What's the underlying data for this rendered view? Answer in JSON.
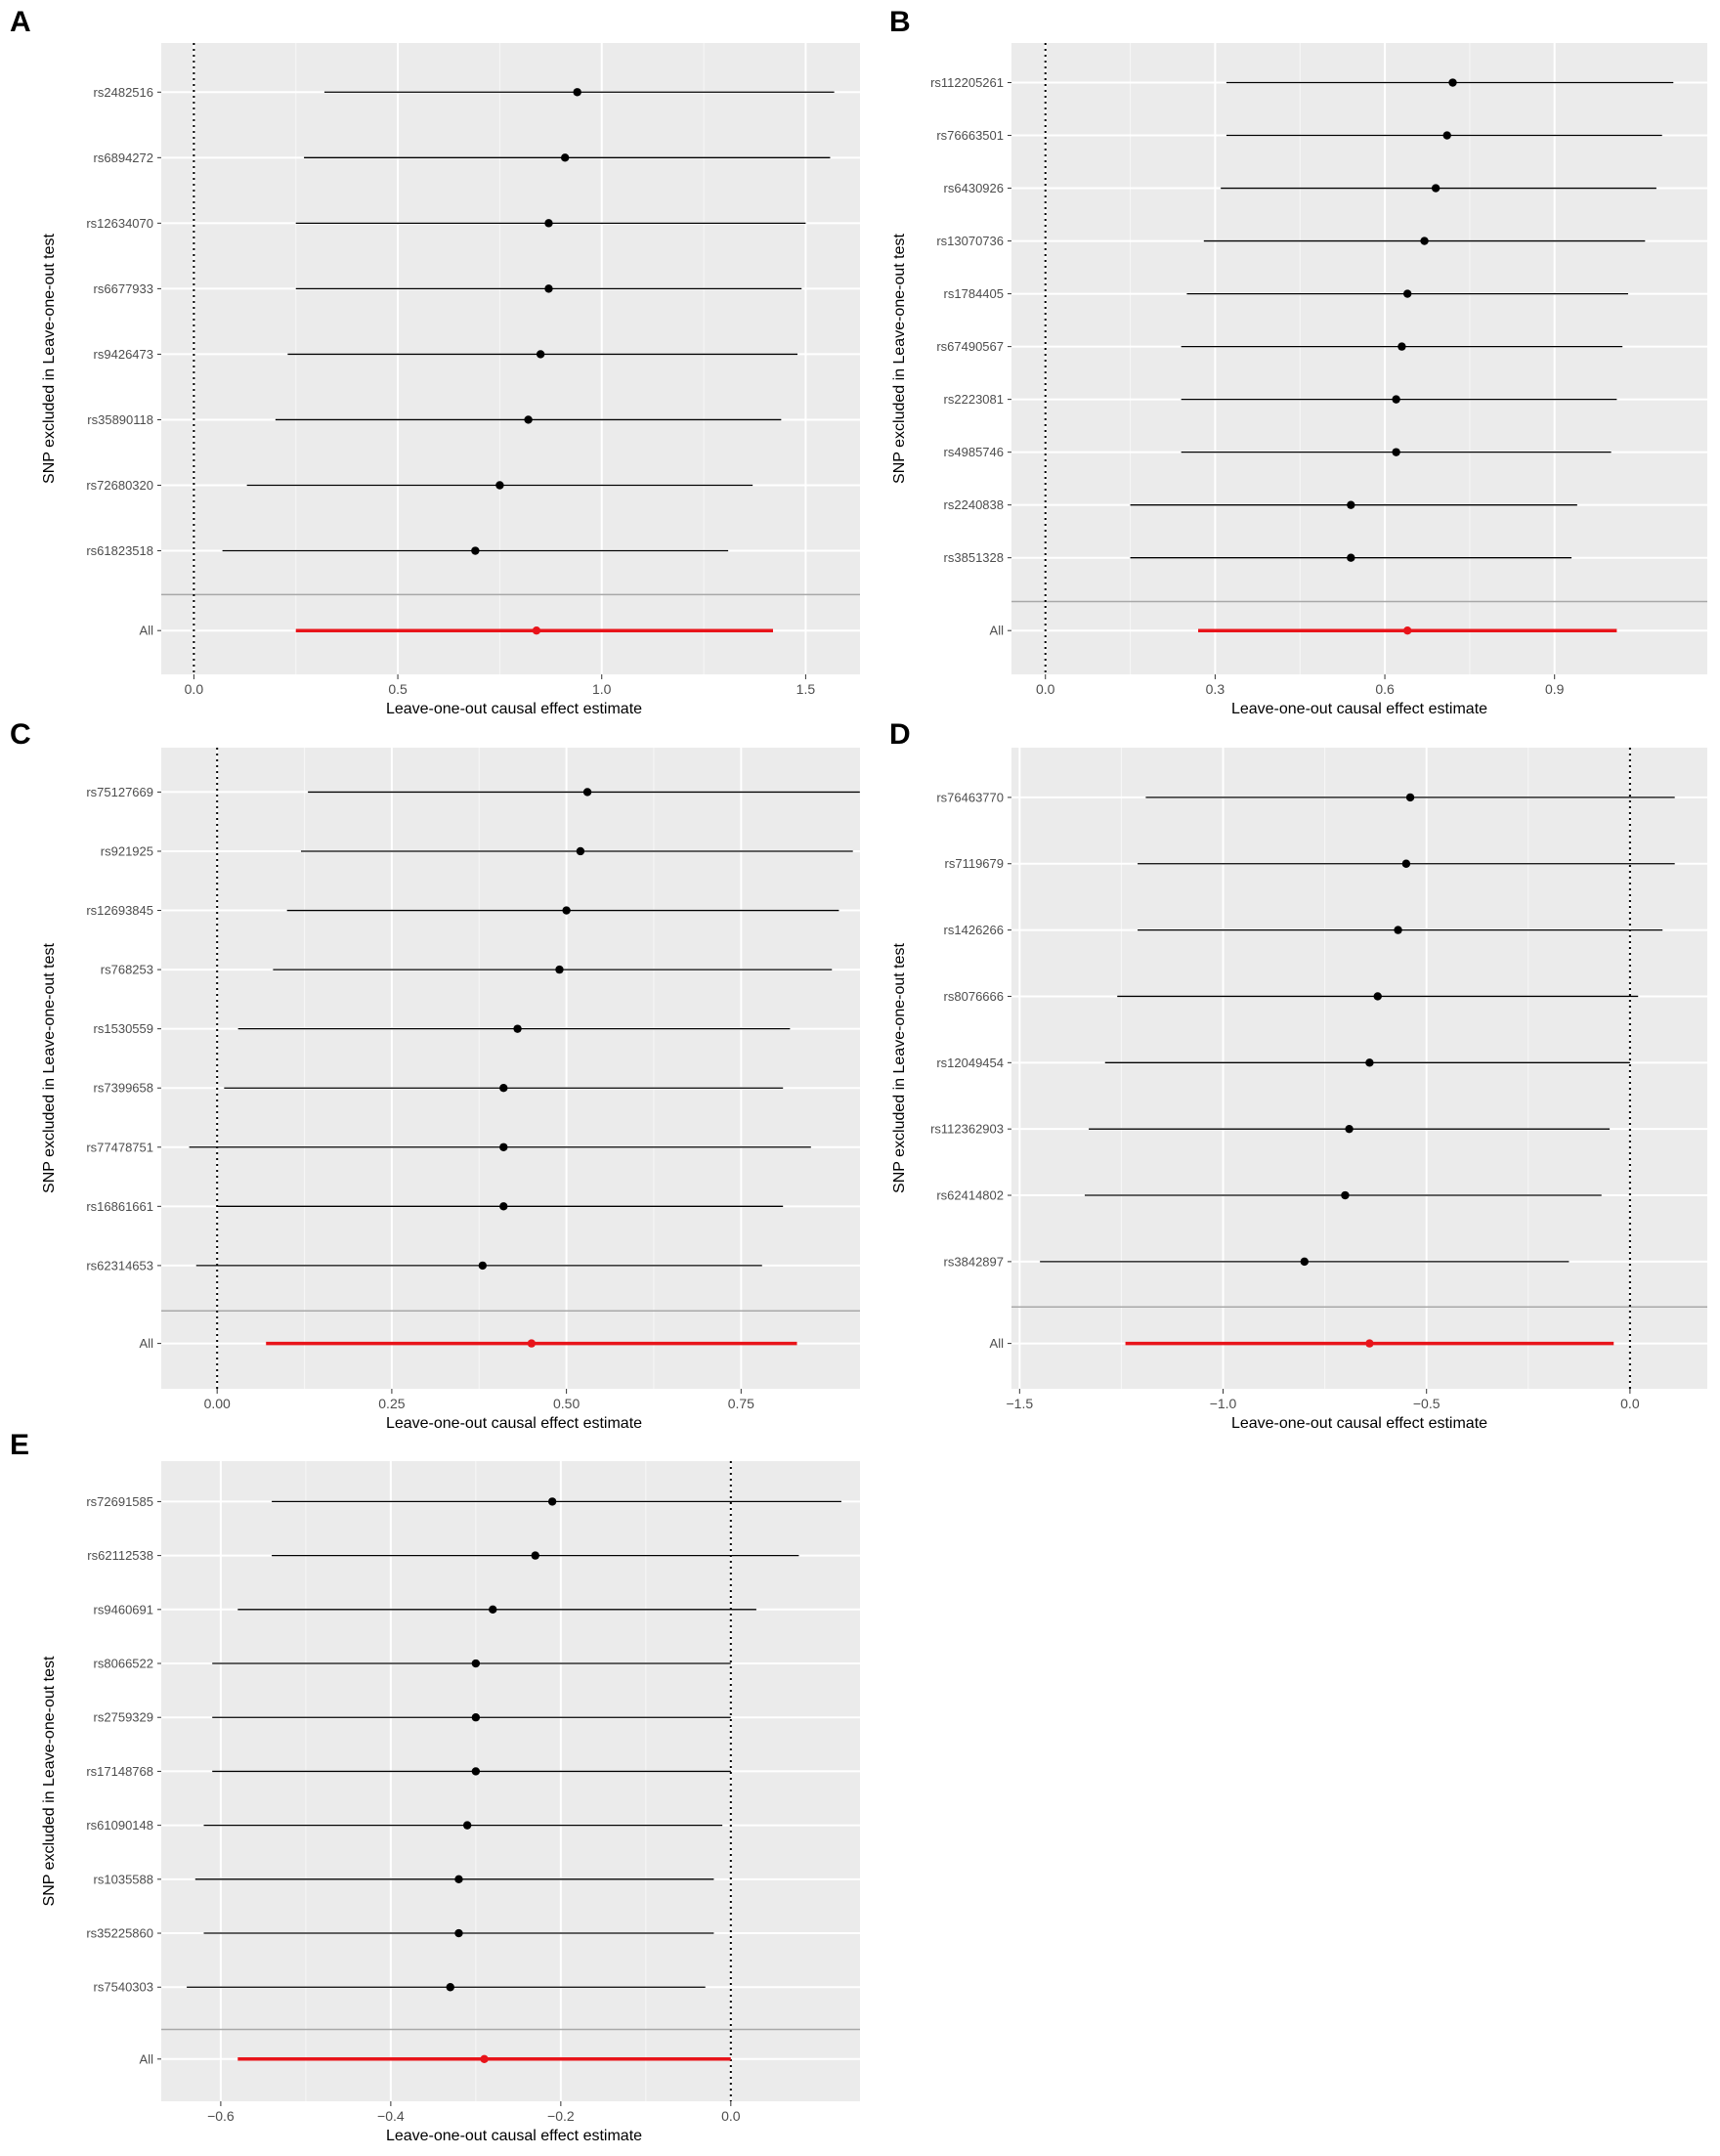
{
  "chart_data": [
    {
      "panel": "A",
      "type": "forest",
      "xlabel": "Leave-one-out causal effect estimate",
      "ylabel": "SNP excluded in Leave-one-out test",
      "xlim": [
        -0.08,
        1.65
      ],
      "xticks": [
        0.0,
        0.5,
        1.0,
        1.5
      ],
      "xtick_labels": [
        "0.0",
        "0.5",
        "1.0",
        "1.5"
      ],
      "rows": [
        {
          "label": "rs2482516",
          "est": 0.94,
          "lo": 0.32,
          "hi": 1.57
        },
        {
          "label": "rs6894272",
          "est": 0.91,
          "lo": 0.27,
          "hi": 1.56
        },
        {
          "label": "rs12634070",
          "est": 0.87,
          "lo": 0.25,
          "hi": 1.5
        },
        {
          "label": "rs6677933",
          "est": 0.87,
          "lo": 0.25,
          "hi": 1.49
        },
        {
          "label": "rs9426473",
          "est": 0.85,
          "lo": 0.23,
          "hi": 1.48
        },
        {
          "label": "rs35890118",
          "est": 0.82,
          "lo": 0.2,
          "hi": 1.44
        },
        {
          "label": "rs72680320",
          "est": 0.75,
          "lo": 0.13,
          "hi": 1.37
        },
        {
          "label": "rs61823518",
          "est": 0.69,
          "lo": 0.07,
          "hi": 1.31
        }
      ],
      "overall": {
        "label": "All",
        "est": 0.84,
        "lo": 0.25,
        "hi": 1.42
      }
    },
    {
      "panel": "B",
      "type": "forest",
      "xlabel": "Leave-one-out causal effect estimate",
      "ylabel": "SNP excluded in Leave-one-out test",
      "xlim": [
        -0.06,
        1.17
      ],
      "xticks": [
        0.0,
        0.3,
        0.6,
        0.9
      ],
      "xtick_labels": [
        "0.0",
        "0.3",
        "0.6",
        "0.9"
      ],
      "rows": [
        {
          "label": "rs112205261",
          "est": 0.72,
          "lo": 0.32,
          "hi": 1.11
        },
        {
          "label": "rs76663501",
          "est": 0.71,
          "lo": 0.32,
          "hi": 1.09
        },
        {
          "label": "rs6430926",
          "est": 0.69,
          "lo": 0.31,
          "hi": 1.08
        },
        {
          "label": "rs13070736",
          "est": 0.67,
          "lo": 0.28,
          "hi": 1.06
        },
        {
          "label": "rs1784405",
          "est": 0.64,
          "lo": 0.25,
          "hi": 1.03
        },
        {
          "label": "rs67490567",
          "est": 0.63,
          "lo": 0.24,
          "hi": 1.02
        },
        {
          "label": "rs2223081",
          "est": 0.62,
          "lo": 0.24,
          "hi": 1.01
        },
        {
          "label": "rs4985746",
          "est": 0.62,
          "lo": 0.24,
          "hi": 1.0
        },
        {
          "label": "rs2240838",
          "est": 0.54,
          "lo": 0.15,
          "hi": 0.94
        },
        {
          "label": "rs3851328",
          "est": 0.54,
          "lo": 0.15,
          "hi": 0.93
        }
      ],
      "overall": {
        "label": "All",
        "est": 0.64,
        "lo": 0.27,
        "hi": 1.01
      }
    },
    {
      "panel": "C",
      "type": "forest",
      "xlabel": "Leave-one-out causal effect estimate",
      "ylabel": "SNP excluded in Leave-one-out test",
      "xlim": [
        -0.08,
        0.93
      ],
      "xticks": [
        0.0,
        0.25,
        0.5,
        0.75
      ],
      "xtick_labels": [
        "0.00",
        "0.25",
        "0.50",
        "0.75"
      ],
      "rows": [
        {
          "label": "rs75127669",
          "est": 0.53,
          "lo": 0.13,
          "hi": 0.92
        },
        {
          "label": "rs921925",
          "est": 0.52,
          "lo": 0.12,
          "hi": 0.91
        },
        {
          "label": "rs12693845",
          "est": 0.5,
          "lo": 0.1,
          "hi": 0.89
        },
        {
          "label": "rs768253",
          "est": 0.49,
          "lo": 0.08,
          "hi": 0.88
        },
        {
          "label": "rs1530559",
          "est": 0.43,
          "lo": 0.03,
          "hi": 0.82
        },
        {
          "label": "rs7399658",
          "est": 0.41,
          "lo": 0.01,
          "hi": 0.81
        },
        {
          "label": "rs77478751",
          "est": 0.41,
          "lo": -0.04,
          "hi": 0.85
        },
        {
          "label": "rs16861661",
          "est": 0.41,
          "lo": 0.0,
          "hi": 0.81
        },
        {
          "label": "rs62314653",
          "est": 0.38,
          "lo": -0.03,
          "hi": 0.78
        }
      ],
      "overall": {
        "label": "All",
        "est": 0.45,
        "lo": 0.07,
        "hi": 0.83
      }
    },
    {
      "panel": "D",
      "type": "forest",
      "xlabel": "Leave-one-out causal effect estimate",
      "ylabel": "SNP excluded in Leave-one-out test",
      "xlim": [
        -1.52,
        0.19
      ],
      "xticks": [
        -1.5,
        -1.0,
        -0.5,
        0.0
      ],
      "xtick_labels": [
        "−1.5",
        "−1.0",
        "−0.5",
        "0.0"
      ],
      "rows": [
        {
          "label": "rs76463770",
          "est": -0.54,
          "lo": -1.19,
          "hi": 0.11
        },
        {
          "label": "rs7119679",
          "est": -0.55,
          "lo": -1.21,
          "hi": 0.11
        },
        {
          "label": "rs1426266",
          "est": -0.57,
          "lo": -1.21,
          "hi": 0.08
        },
        {
          "label": "rs8076666",
          "est": -0.62,
          "lo": -1.26,
          "hi": 0.02
        },
        {
          "label": "rs12049454",
          "est": -0.64,
          "lo": -1.29,
          "hi": 0.0
        },
        {
          "label": "rs112362903",
          "est": -0.69,
          "lo": -1.33,
          "hi": -0.05
        },
        {
          "label": "rs62414802",
          "est": -0.7,
          "lo": -1.34,
          "hi": -0.07
        },
        {
          "label": "rs3842897",
          "est": -0.8,
          "lo": -1.45,
          "hi": -0.15
        }
      ],
      "overall": {
        "label": "All",
        "est": -0.64,
        "lo": -1.24,
        "hi": -0.04
      }
    },
    {
      "panel": "E",
      "type": "forest",
      "xlabel": "Leave-one-out causal effect estimate",
      "ylabel": "SNP excluded in Leave-one-out test",
      "xlim": [
        -0.67,
        0.16
      ],
      "xticks": [
        -0.6,
        -0.4,
        -0.2,
        0.0
      ],
      "xtick_labels": [
        "−0.6",
        "−0.4",
        "−0.2",
        "0.0"
      ],
      "rows": [
        {
          "label": "rs72691585",
          "est": -0.21,
          "lo": -0.54,
          "hi": 0.13
        },
        {
          "label": "rs62112538",
          "est": -0.23,
          "lo": -0.54,
          "hi": 0.08
        },
        {
          "label": "rs9460691",
          "est": -0.28,
          "lo": -0.58,
          "hi": 0.03
        },
        {
          "label": "rs8066522",
          "est": -0.3,
          "lo": -0.61,
          "hi": 0.0
        },
        {
          "label": "rs2759329",
          "est": -0.3,
          "lo": -0.61,
          "hi": 0.0
        },
        {
          "label": "rs17148768",
          "est": -0.3,
          "lo": -0.61,
          "hi": 0.0
        },
        {
          "label": "rs61090148",
          "est": -0.31,
          "lo": -0.62,
          "hi": -0.01
        },
        {
          "label": "rs1035588",
          "est": -0.32,
          "lo": -0.63,
          "hi": -0.02
        },
        {
          "label": "rs35225860",
          "est": -0.32,
          "lo": -0.62,
          "hi": -0.02
        },
        {
          "label": "rs7540303",
          "est": -0.33,
          "lo": -0.64,
          "hi": -0.03
        }
      ],
      "overall": {
        "label": "All",
        "est": -0.29,
        "lo": -0.58,
        "hi": 0.0
      }
    }
  ]
}
